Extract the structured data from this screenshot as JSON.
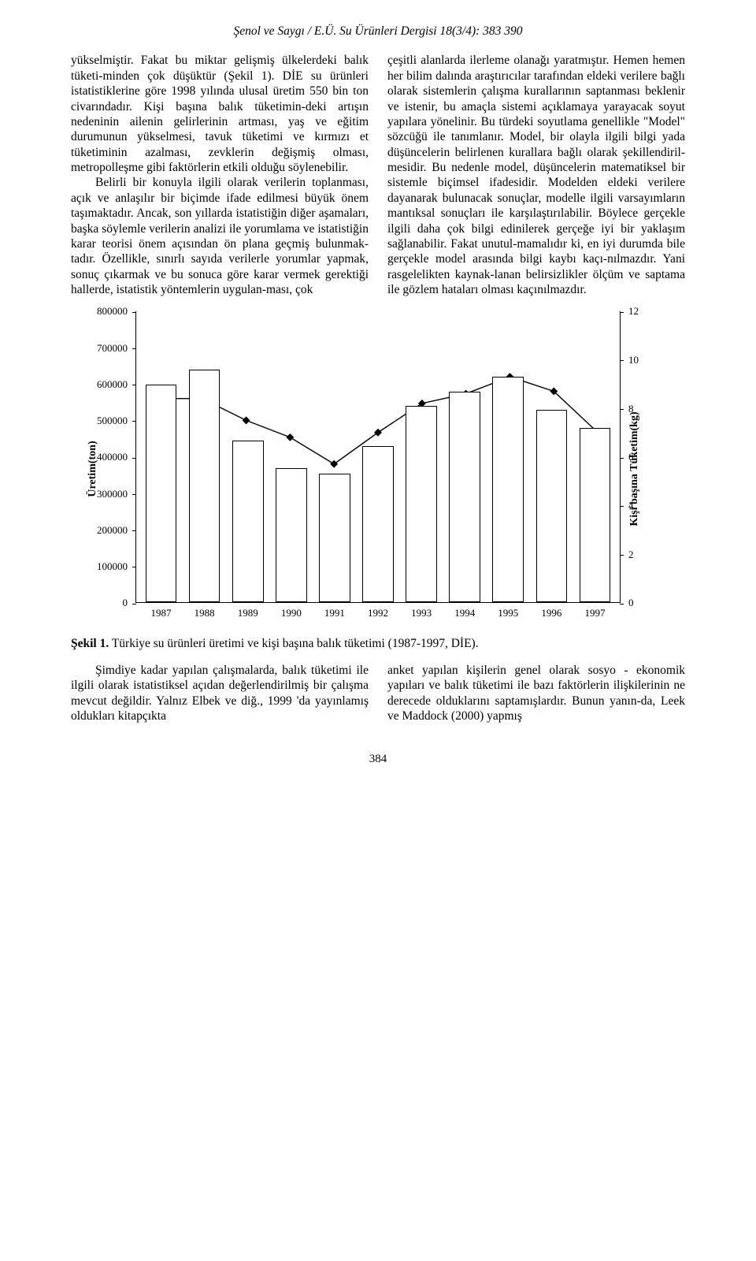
{
  "header": "Şenol ve Saygı / E.Ü. Su Ürünleri Dergisi 18(3/4): 383 390",
  "left_para1": "yükselmiştir. Fakat bu miktar gelişmiş ülkelerdeki balık tüketi-minden çok düşüktür (Şekil 1). DİE su ürünleri istatistiklerine göre 1998 yılında ulusal üretim 550 bin ton civarındadır. Kişi başına balık tüketimin-deki artışın nedeninin ailenin gelirlerinin artması, yaş ve eğitim durumunun yükselmesi, tavuk tüketimi ve kırmızı et tüketiminin azalması, zevklerin değişmiş olması, metropolleşme gibi faktörlerin etkili olduğu söylenebilir.",
  "left_para2": "Belirli bir konuyla ilgili olarak verilerin toplanması, açık ve anlaşılır bir biçimde ifade edilmesi büyük önem taşımaktadır. Ancak, son yıllarda istatistiğin diğer aşamaları, başka söylemle verilerin analizi ile yorumlama ve istatistiğin karar teorisi önem açısından ön plana geçmiş bulunmak-tadır. Özellikle, sınırlı sayıda verilerle yorumlar yapmak, sonuç çıkarmak ve bu sonuca göre karar vermek gerektiği hallerde, istatistik yöntemlerin uygulan-ması, çok",
  "right_para1": "çeşitli alanlarda ilerleme olanağı yaratmıştır. Hemen hemen her bilim dalında araştırıcılar tarafından eldeki verilere bağlı olarak sistemlerin çalışma kurallarının saptanması beklenir ve istenir, bu amaçla sistemi açıklamaya yarayacak soyut yapılara yönelinir. Bu türdeki soyutlama genellikle \"Model\" sözcüğü ile tanımlanır. Model, bir olayla ilgili bilgi yada düşüncelerin belirlenen kurallara bağlı olarak şekillendiril-mesidir. Bu nedenle model, düşüncelerin matematiksel bir sistemle biçimsel ifadesidir. Modelden eldeki verilere dayanarak bulunacak sonuçlar, modelle ilgili varsayımların mantıksal sonuçları ile karşılaştırılabilir. Böylece gerçekle ilgili daha çok bilgi edinilerek gerçeğe iyi bir yaklaşım sağlanabilir. Fakat unutul-mamalıdır ki, en iyi durumda bile gerçekle model arasında bilgi kaybı kaçı-nılmazdır. Yani rasgelelikten kaynak-lanan belirsizlikler ölçüm ve saptama ile gözlem hataları olması kaçınılmazdır.",
  "chart": {
    "type": "bar+line",
    "ylabel_left": "Üretim(ton)",
    "ylabel_right": "Kişi başına Tüketim(kg)",
    "left_ticks": [
      0,
      100000,
      200000,
      300000,
      400000,
      500000,
      600000,
      700000,
      800000
    ],
    "right_ticks": [
      0,
      2,
      4,
      6,
      8,
      10,
      12
    ],
    "left_max": 800000,
    "right_max": 12,
    "years": [
      "1987",
      "1988",
      "1989",
      "1990",
      "1991",
      "1992",
      "1993",
      "1994",
      "1995",
      "1996",
      "1997"
    ],
    "bar_values": [
      600000,
      640000,
      445000,
      370000,
      355000,
      430000,
      540000,
      580000,
      620000,
      530000,
      480000
    ],
    "line_values": [
      8.4,
      8.4,
      7.5,
      6.8,
      5.7,
      7.0,
      8.2,
      8.6,
      9.3,
      8.7,
      7.0
    ],
    "bar_fill": "#ffffff",
    "bar_border": "#000000",
    "line_color": "#000000",
    "background": "#ffffff",
    "bar_width": 0.72,
    "marker": "diamond",
    "marker_size": 7,
    "font_size_ticks": 13,
    "font_size_axis_label": 14
  },
  "caption_bold": "Şekil 1.",
  "caption_rest": " Türkiye su ürünleri üretimi ve kişi başına balık tüketimi (1987-1997, DİE).",
  "below_left": "Şimdiye kadar yapılan çalışmalarda, balık tüketimi ile ilgili olarak istatistiksel açıdan değerlendirilmiş bir çalışma mevcut değildir. Yalnız Elbek ve diğ., 1999 'da yayınlamış oldukları kitapçıkta",
  "below_right": "anket yapılan kişilerin genel olarak sosyo - ekonomik yapıları ve balık tüketimi ile bazı faktörlerin ilişkilerinin ne derecede olduklarını saptamışlardır. Bunun yanın-da, Leek ve Maddock (2000) yapmış",
  "pagenum": "384"
}
